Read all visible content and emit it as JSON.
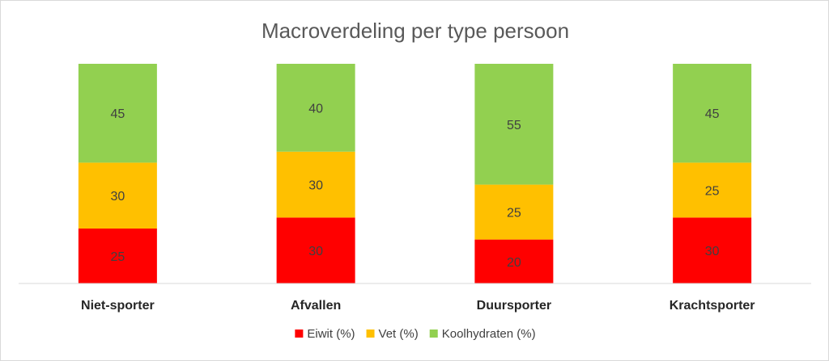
{
  "chart_data": {
    "type": "bar",
    "stacked": true,
    "title": "Macroverdeling per type persoon",
    "categories": [
      "Niet-sporter",
      "Afvallen",
      "Duursporter",
      "Krachtsporter"
    ],
    "series": [
      {
        "name": "Eiwit (%)",
        "color": "#ff0000",
        "values": [
          25,
          30,
          20,
          30
        ]
      },
      {
        "name": "Vet (%)",
        "color": "#ffc000",
        "values": [
          30,
          30,
          25,
          25
        ]
      },
      {
        "name": "Koolhydraten (%)",
        "color": "#92d050",
        "values": [
          45,
          40,
          55,
          45
        ]
      }
    ],
    "ylim": [
      0,
      100
    ],
    "grid": false,
    "legend_position": "bottom",
    "data_labels": true
  }
}
